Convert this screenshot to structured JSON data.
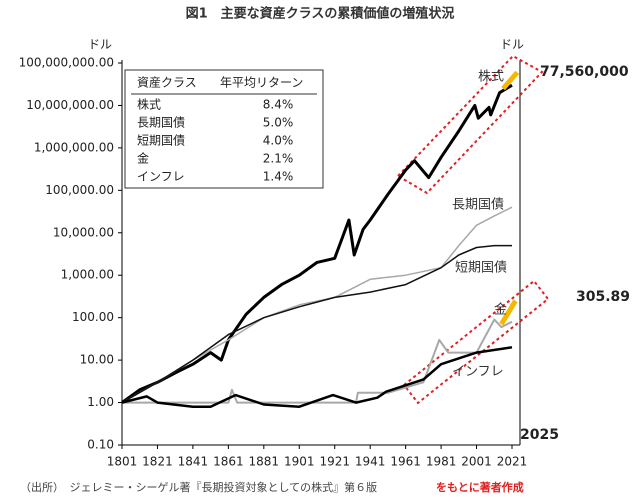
{
  "chart_data": {
    "type": "line",
    "title": "図1　主要な資産クラスの累積価値の増殖状況",
    "y_unit_left": "ドル",
    "y_unit_right": "ドル",
    "log_scale": true,
    "xlim": [
      1801,
      2021
    ],
    "xticks": [
      1801,
      1821,
      1841,
      1861,
      1881,
      1901,
      1921,
      1941,
      1961,
      1981,
      2001,
      2021
    ],
    "ylim": [
      0.1,
      100000000
    ],
    "yticks": [
      {
        "value": 0.1,
        "label": "0.10"
      },
      {
        "value": 1,
        "label": "1.00"
      },
      {
        "value": 10,
        "label": "10.00"
      },
      {
        "value": 100,
        "label": "100.00"
      },
      {
        "value": 1000,
        "label": "1,000.00"
      },
      {
        "value": 10000,
        "label": "10,000.00"
      },
      {
        "value": 100000,
        "label": "100,000.00"
      },
      {
        "value": 1000000,
        "label": "1,000,000.00"
      },
      {
        "value": 10000000,
        "label": "10,000,000.00"
      },
      {
        "value": 100000000,
        "label": "100,000,000.00"
      }
    ],
    "series": [
      {
        "name": "株式",
        "color": "#000000",
        "width": 3,
        "x": [
          1801,
          1811,
          1821,
          1831,
          1841,
          1851,
          1857,
          1861,
          1871,
          1881,
          1891,
          1901,
          1911,
          1921,
          1929,
          1932,
          1937,
          1941,
          1951,
          1961,
          1966,
          1974,
          1981,
          1991,
          2000,
          2002,
          2008,
          2009,
          2014,
          2021
        ],
        "values": [
          1,
          2,
          3,
          5,
          8,
          15,
          10,
          30,
          120,
          300,
          600,
          1000,
          2000,
          2500,
          20000,
          3000,
          12000,
          20000,
          80000,
          300000,
          500000,
          200000,
          600000,
          2500000,
          10000000,
          5000000,
          9000000,
          6000000,
          20000000,
          30000000
        ]
      },
      {
        "name": "長期国債",
        "color": "#a8a8a8",
        "width": 1.5,
        "x": [
          1801,
          1821,
          1841,
          1861,
          1881,
          1901,
          1921,
          1941,
          1961,
          1981,
          1991,
          2001,
          2011,
          2021
        ],
        "values": [
          1,
          3,
          10,
          30,
          100,
          200,
          300,
          800,
          1000,
          1500,
          5000,
          15000,
          25000,
          40000
        ]
      },
      {
        "name": "短期国債",
        "color": "#111111",
        "width": 1.5,
        "x": [
          1801,
          1821,
          1841,
          1861,
          1881,
          1901,
          1921,
          1941,
          1961,
          1981,
          1991,
          2001,
          2011,
          2021
        ],
        "values": [
          1,
          3,
          10,
          40,
          100,
          180,
          300,
          400,
          600,
          1500,
          3000,
          4500,
          5000,
          5000
        ]
      },
      {
        "name": "金",
        "color": "#a8a8a8",
        "width": 2,
        "x": [
          1801,
          1861,
          1863,
          1866,
          1901,
          1933,
          1934,
          1951,
          1971,
          1980,
          1985,
          2001,
          2011,
          2015,
          2021
        ],
        "values": [
          1,
          1,
          2,
          1,
          1,
          1,
          1.7,
          1.7,
          3,
          30,
          15,
          15,
          90,
          60,
          80
        ]
      },
      {
        "name": "インフレ",
        "color": "#000000",
        "width": 2.5,
        "x": [
          1801,
          1815,
          1821,
          1841,
          1851,
          1865,
          1881,
          1901,
          1920,
          1933,
          1945,
          1950,
          1971,
          1981,
          2001,
          2021
        ],
        "values": [
          1,
          1.4,
          1,
          0.8,
          0.8,
          1.5,
          0.9,
          0.8,
          1.5,
          1,
          1.3,
          1.8,
          3.5,
          8,
          15,
          20
        ]
      },
      {
        "color": "#f5b800",
        "width": 5,
        "x": [
          2016,
          2024
        ],
        "values": [
          25000000,
          60000000
        ]
      },
      {
        "color": "#f5b800",
        "width": 5,
        "x": [
          2015,
          2023
        ],
        "values": [
          70,
          250
        ]
      }
    ],
    "legend_table": {
      "header": [
        "資産クラス",
        "年平均リターン"
      ],
      "rows": [
        [
          "株式",
          "8.4%"
        ],
        [
          "長期国債",
          "5.0%"
        ],
        [
          "短期国債",
          "4.0%"
        ],
        [
          "金",
          "2.1%"
        ],
        [
          "インフレ",
          "1.4%"
        ]
      ]
    },
    "annotations": [
      "77,560,000",
      "305.89",
      "2025"
    ],
    "source": "（出所）　ジェレミー・シーゲル著『長期投資対象としての株式』第６版",
    "source_note": "をもとに著者作成"
  }
}
